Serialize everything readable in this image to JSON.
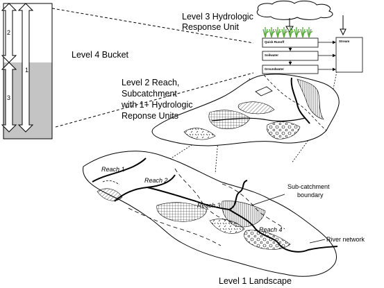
{
  "labels": {
    "level4": "Level 4 Bucket",
    "level3_line1": "Level 3 Hydrologic",
    "level3_line2": "Response Unit",
    "level2_line1": "Level 2  Reach,",
    "level2_line2": "Subcatchment",
    "level2_line3": "with 1+ Hydrologic",
    "level2_line4": "Reponse Units",
    "level1": "Level 1 Landscape",
    "subcatchment_line1": "Sub-catchment",
    "subcatchment_line2": "boundary",
    "river_network": "River network"
  },
  "bucket": {
    "arrow_labels": [
      "2",
      "1",
      "3"
    ]
  },
  "hru_boxes": {
    "quickflow": "Quick Runoff",
    "soilwater": "Soilwater",
    "groundwater": "Groundwater",
    "stream": "Stream"
  },
  "reaches": [
    "Reach 1",
    "Reach 2",
    "Reach 3",
    "Reach 4"
  ],
  "colors": {
    "line": "#000000",
    "bucket_fill": "#c4c4c4",
    "grass": "#58a83a",
    "cloud_fill": "#ffffff",
    "map_fill": "#ffffff"
  }
}
